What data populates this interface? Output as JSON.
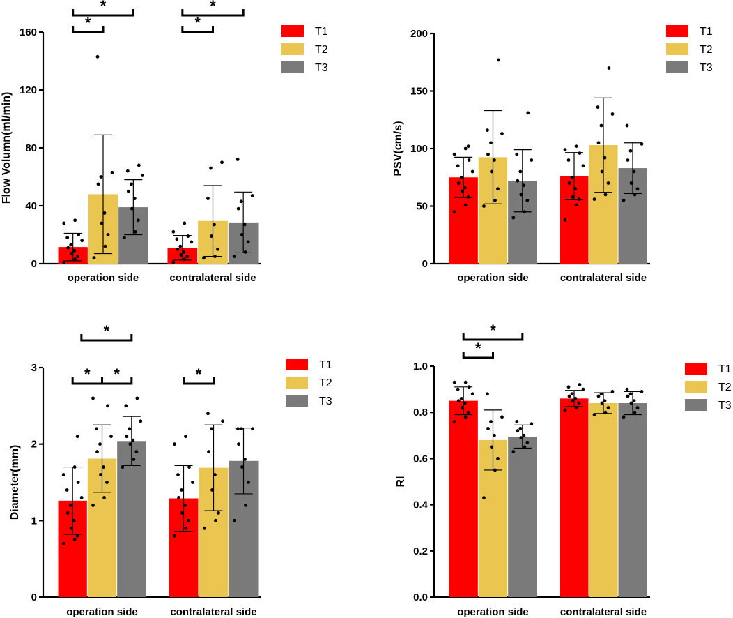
{
  "colors": {
    "T1": "#ff0000",
    "T2": "#eac54f",
    "T3": "#7a7a7a"
  },
  "legend": [
    "T1",
    "T2",
    "T3"
  ],
  "chart_data": [
    {
      "type": "bar",
      "id": "flow",
      "ylabel": "Flow Volumn(ml/min)",
      "ylim": [
        0,
        160
      ],
      "yticks": [
        0,
        40,
        80,
        120,
        160
      ],
      "categories": [
        "operation side",
        "contralateral side"
      ],
      "series": [
        {
          "name": "T1",
          "values": [
            11.5,
            11.0
          ],
          "err": [
            9.5,
            8.5
          ],
          "points": [
            [
              1,
              3,
              5,
              7,
              9,
              11,
              13,
              16,
              18,
              20,
              28,
              30
            ],
            [
              1,
              3,
              5,
              6,
              8,
              10,
              12,
              15,
              17,
              19,
              22,
              28
            ]
          ]
        },
        {
          "name": "T2",
          "values": [
            48,
            29.5
          ],
          "err": [
            41,
            24.5
          ],
          "points": [
            [
              4,
              12,
              20,
              28,
              35,
              55,
              60,
              63,
              143
            ],
            [
              4,
              5,
              10,
              19,
              27,
              45,
              66,
              70
            ]
          ]
        },
        {
          "name": "T3",
          "values": [
            39,
            28.5
          ],
          "err": [
            19,
            21
          ],
          "points": [
            [
              18,
              22,
              30,
              38,
              45,
              50,
              55,
              61,
              64,
              68
            ],
            [
              5,
              8,
              15,
              20,
              27,
              38,
              43,
              47,
              72
            ]
          ]
        }
      ],
      "significance": [
        {
          "group": 0,
          "from": 0,
          "to": 1,
          "level": 0,
          "label": "*"
        },
        {
          "group": 0,
          "from": 0,
          "to": 2,
          "level": 1,
          "label": "*"
        },
        {
          "group": 1,
          "from": 0,
          "to": 1,
          "level": 0,
          "label": "*"
        },
        {
          "group": 1,
          "from": 0,
          "to": 2,
          "level": 1,
          "label": "*"
        }
      ]
    },
    {
      "type": "bar",
      "id": "psv",
      "ylabel": "PSV(cm/s)",
      "ylim": [
        0,
        200
      ],
      "yticks": [
        0,
        50,
        100,
        150,
        200
      ],
      "categories": [
        "operation side",
        "contralateral side"
      ],
      "series": [
        {
          "name": "T1",
          "values": [
            75,
            76
          ],
          "err": [
            17.5,
            20.5
          ],
          "points": [
            [
              45,
              51,
              58,
              63,
              66,
              70,
              75,
              80,
              85,
              90,
              95,
              100,
              102
            ],
            [
              38,
              51,
              56,
              58,
              65,
              70,
              75,
              85,
              90,
              96,
              99,
              102
            ]
          ]
        },
        {
          "name": "T2",
          "values": [
            92.5,
            103
          ],
          "err": [
            40.5,
            41
          ],
          "points": [
            [
              50,
              55,
              65,
              80,
              90,
              95,
              105,
              113,
              116,
              177
            ],
            [
              56,
              60,
              70,
              80,
              92,
              105,
              120,
              130,
              136,
              170
            ]
          ]
        },
        {
          "name": "T3",
          "values": [
            72,
            83
          ],
          "err": [
            27,
            22
          ],
          "points": [
            [
              40,
              45,
              55,
              60,
              68,
              72,
              80,
              90,
              95,
              131
            ],
            [
              55,
              60,
              65,
              70,
              80,
              90,
              98,
              104,
              120
            ]
          ]
        }
      ],
      "significance": []
    },
    {
      "type": "bar",
      "id": "diameter",
      "ylabel": "Diameter(mm)",
      "ylim": [
        0,
        3
      ],
      "yticks": [
        0,
        1,
        2,
        3
      ],
      "categories": [
        "operation side",
        "contralateral side"
      ],
      "series": [
        {
          "name": "T1",
          "values": [
            1.26,
            1.29
          ],
          "err": [
            0.44,
            0.43
          ],
          "points": [
            [
              0.7,
              0.75,
              0.8,
              0.9,
              1.0,
              1.1,
              1.2,
              1.3,
              1.4,
              1.5,
              1.6,
              1.7,
              2.1
            ],
            [
              0.8,
              0.9,
              1.0,
              1.1,
              1.2,
              1.3,
              1.4,
              1.5,
              1.6,
              1.7,
              2.0,
              2.1
            ]
          ]
        },
        {
          "name": "T2",
          "values": [
            1.81,
            1.69
          ],
          "err": [
            0.44,
            0.56
          ],
          "points": [
            [
              1.2,
              1.3,
              1.5,
              1.6,
              1.7,
              1.9,
              2.0,
              2.1,
              2.2,
              2.5,
              2.6
            ],
            [
              0.9,
              1.0,
              1.1,
              1.4,
              1.6,
              1.9,
              2.2,
              2.3,
              2.4
            ]
          ]
        },
        {
          "name": "T3",
          "values": [
            2.04,
            1.78
          ],
          "err": [
            0.32,
            0.43
          ],
          "points": [
            [
              1.7,
              1.8,
              1.9,
              2.0,
              2.05,
              2.1,
              2.2,
              2.3,
              2.5,
              2.6
            ],
            [
              1.0,
              1.2,
              1.5,
              1.7,
              1.8,
              2.0,
              2.2,
              2.2,
              2.2
            ]
          ]
        }
      ],
      "significance": [
        {
          "group": 0,
          "from": 0,
          "to": 1,
          "level": 0,
          "label": "*"
        },
        {
          "group": 0,
          "from": 1,
          "to": 2,
          "level": 0,
          "label": "*"
        },
        {
          "group": 0,
          "from": 0.3,
          "to": 2,
          "level": 1,
          "label": "*"
        },
        {
          "group": 1,
          "from": 0,
          "to": 1,
          "level": 0,
          "label": "*"
        }
      ]
    },
    {
      "type": "bar",
      "id": "ri",
      "ylabel": "RI",
      "ylim": [
        0,
        1
      ],
      "yticks": [
        "0.0",
        "0.2",
        "0.4",
        "0.6",
        "0.8",
        "1.0"
      ],
      "categories": [
        "operation side",
        "contralateral side"
      ],
      "series": [
        {
          "name": "T1",
          "values": [
            0.85,
            0.86
          ],
          "err": [
            0.06,
            0.035
          ],
          "points": [
            [
              0.76,
              0.78,
              0.8,
              0.82,
              0.84,
              0.85,
              0.86,
              0.88,
              0.9,
              0.91,
              0.93,
              0.93
            ],
            [
              0.81,
              0.82,
              0.84,
              0.85,
              0.86,
              0.87,
              0.88,
              0.9,
              0.91,
              0.92
            ]
          ]
        },
        {
          "name": "T2",
          "values": [
            0.68,
            0.84
          ],
          "err": [
            0.13,
            0.045
          ],
          "points": [
            [
              0.43,
              0.55,
              0.6,
              0.65,
              0.7,
              0.73,
              0.76,
              0.78,
              0.88
            ],
            [
              0.79,
              0.8,
              0.82,
              0.84,
              0.85,
              0.87,
              0.88,
              0.89
            ]
          ]
        },
        {
          "name": "T3",
          "values": [
            0.695,
            0.84
          ],
          "err": [
            0.05,
            0.05
          ],
          "points": [
            [
              0.63,
              0.65,
              0.67,
              0.69,
              0.7,
              0.72,
              0.73,
              0.75,
              0.76
            ],
            [
              0.78,
              0.8,
              0.82,
              0.84,
              0.85,
              0.87,
              0.88,
              0.89,
              0.9
            ]
          ]
        }
      ],
      "significance": [
        {
          "group": 0,
          "from": 0,
          "to": 1,
          "level": 0,
          "label": "*"
        },
        {
          "group": 0,
          "from": 0,
          "to": 2,
          "level": 1,
          "label": "*"
        }
      ]
    }
  ]
}
